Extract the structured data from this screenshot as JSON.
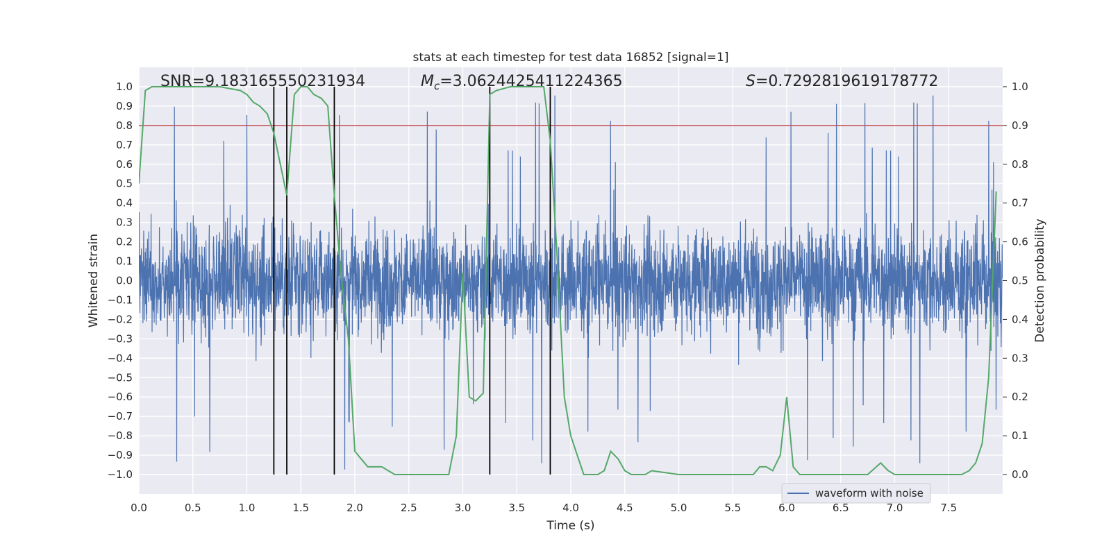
{
  "chart_data": {
    "type": "line",
    "title": "stats at each timestep for test data 16852 [signal=1]",
    "xlabel": "Time (s)",
    "ylabel_left": "Whitened strain",
    "ylabel_right": "Detection probability",
    "xlim": [
      0,
      8
    ],
    "ylim_left": [
      -1.1,
      1.1
    ],
    "ylim_right": [
      -0.05,
      1.05
    ],
    "x_ticks": [
      0.0,
      0.5,
      1.0,
      1.5,
      2.0,
      2.5,
      3.0,
      3.5,
      4.0,
      4.5,
      5.0,
      5.5,
      6.0,
      6.5,
      7.0,
      7.5
    ],
    "x_tick_labels": [
      "0.0",
      "0.5",
      "1.0",
      "1.5",
      "2.0",
      "2.5",
      "3.0",
      "3.5",
      "4.0",
      "4.5",
      "5.0",
      "5.5",
      "6.0",
      "6.5",
      "7.0",
      "7.5"
    ],
    "y_left_ticks": [
      -1.0,
      -0.9,
      -0.8,
      -0.7,
      -0.6,
      -0.5,
      -0.4,
      -0.3,
      -0.2,
      -0.1,
      0.0,
      0.1,
      0.2,
      0.3,
      0.4,
      0.5,
      0.6,
      0.7,
      0.8,
      0.9,
      1.0
    ],
    "y_left_tick_labels": [
      "−1.0",
      "−0.9",
      "−0.8",
      "−0.7",
      "−0.6",
      "−0.5",
      "−0.4",
      "−0.3",
      "−0.2",
      "−0.1",
      "0.0",
      "0.1",
      "0.2",
      "0.3",
      "0.4",
      "0.5",
      "0.6",
      "0.7",
      "0.8",
      "0.9",
      "1.0"
    ],
    "y_right_ticks": [
      0.0,
      0.1,
      0.2,
      0.3,
      0.4,
      0.5,
      0.6,
      0.7,
      0.8,
      0.9,
      1.0
    ],
    "y_right_tick_labels": [
      "0.0",
      "0.1",
      "0.2",
      "0.3",
      "0.4",
      "0.5",
      "0.6",
      "0.7",
      "0.8",
      "0.9",
      "1.0"
    ],
    "annotations": {
      "snr": "SNR=9.183165550231934",
      "mc_symbol": "M",
      "mc_subscript": "c",
      "mc_value": "=3.0624425411224365",
      "s_symbol": "S",
      "s_value": "=0.7292819619178772"
    },
    "threshold": {
      "value": 0.9,
      "axis": "right",
      "color": "#c44e52"
    },
    "vertical_markers_x": [
      1.25,
      1.37,
      1.81,
      3.25,
      3.81
    ],
    "series": [
      {
        "name": "waveform with noise",
        "color": "#4c72b0",
        "axis": "left",
        "kind": "noise",
        "typical_amplitude": 0.5,
        "max_amplitude": 0.98
      },
      {
        "name": "detection probability",
        "color": "#55a868",
        "axis": "right",
        "x": [
          0.0,
          0.06,
          0.12,
          0.25,
          0.5,
          0.75,
          0.94,
          1.0,
          1.06,
          1.12,
          1.19,
          1.25,
          1.31,
          1.37,
          1.44,
          1.5,
          1.56,
          1.62,
          1.69,
          1.75,
          1.81,
          1.87,
          1.94,
          2.0,
          2.06,
          2.12,
          2.19,
          2.25,
          2.31,
          2.37,
          2.5,
          2.62,
          2.75,
          2.87,
          2.94,
          3.0,
          3.06,
          3.12,
          3.19,
          3.25,
          3.31,
          3.44,
          3.5,
          3.62,
          3.75,
          3.81,
          3.87,
          3.94,
          4.0,
          4.06,
          4.12,
          4.25,
          4.31,
          4.37,
          4.44,
          4.5,
          4.56,
          4.69,
          4.75,
          5.0,
          5.5,
          5.69,
          5.75,
          5.81,
          5.87,
          5.94,
          6.0,
          6.06,
          6.12,
          6.19,
          6.25,
          6.31,
          6.37,
          6.5,
          6.75,
          6.87,
          6.94,
          7.0,
          7.5,
          7.56,
          7.62,
          7.69,
          7.75,
          7.81,
          7.87,
          7.94
        ],
        "y": [
          0.75,
          0.99,
          1.0,
          1.0,
          1.0,
          1.0,
          0.99,
          0.98,
          0.96,
          0.95,
          0.93,
          0.88,
          0.8,
          0.72,
          0.98,
          1.0,
          1.0,
          0.98,
          0.97,
          0.95,
          0.72,
          0.52,
          0.35,
          0.06,
          0.04,
          0.02,
          0.02,
          0.02,
          0.01,
          0.0,
          0.0,
          0.0,
          0.0,
          0.0,
          0.1,
          0.52,
          0.2,
          0.19,
          0.21,
          0.98,
          0.99,
          1.0,
          1.0,
          1.0,
          1.0,
          0.86,
          0.58,
          0.2,
          0.1,
          0.05,
          0.0,
          0.0,
          0.01,
          0.06,
          0.04,
          0.01,
          0.0,
          0.0,
          0.01,
          0.0,
          0.0,
          0.0,
          0.02,
          0.02,
          0.01,
          0.05,
          0.2,
          0.02,
          0.0,
          0.0,
          0.0,
          0.0,
          0.0,
          0.0,
          0.0,
          0.03,
          0.01,
          0.0,
          0.0,
          0.0,
          0.0,
          0.01,
          0.03,
          0.08,
          0.25,
          0.73
        ]
      }
    ],
    "legend": {
      "label": "waveform with noise",
      "placement": "lower-right"
    }
  }
}
